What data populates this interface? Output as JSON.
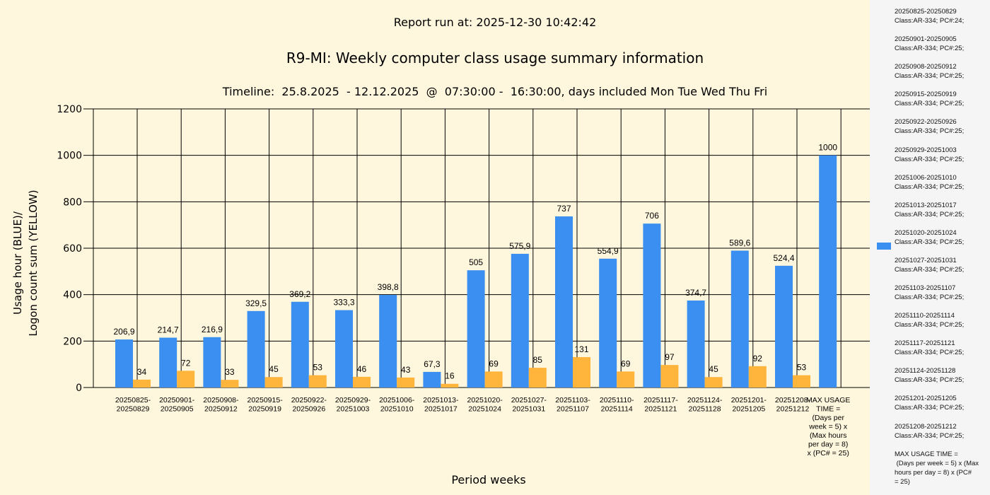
{
  "header": {
    "report_run": "Report run at: 2025-12-30 10:42:42",
    "title": "R9-MI: Weekly computer class usage summary information",
    "timeline": "Timeline:  25.8.2025  - 12.12.2025  @  07:30:00 -  16:30:00, days included Mon Tue Wed Thu Fri"
  },
  "colors": {
    "blue": "#3a8ff0",
    "yellow": "#ffb43c",
    "background": "#fff7dd",
    "legend_bg": "#f5f5f5"
  },
  "chart_data": {
    "type": "bar",
    "xlabel": "Period weeks",
    "ylabel_line1": "Usage hour (BLUE)/",
    "ylabel_line2": "Logon count sum (YELLOW)",
    "ylim": [
      0,
      1200
    ],
    "yticks": [
      0,
      200,
      400,
      600,
      800,
      1000,
      1200
    ],
    "grid": true,
    "categories": [
      [
        "20250825-",
        "20250829"
      ],
      [
        "20250901-",
        "20250905"
      ],
      [
        "20250908-",
        "20250912"
      ],
      [
        "20250915-",
        "20250919"
      ],
      [
        "20250922-",
        "20250926"
      ],
      [
        "20250929-",
        "20251003"
      ],
      [
        "20251006-",
        "20251010"
      ],
      [
        "20251013-",
        "20251017"
      ],
      [
        "20251020-",
        "20251024"
      ],
      [
        "20251027-",
        "20251031"
      ],
      [
        "20251103-",
        "20251107"
      ],
      [
        "20251110-",
        "20251114"
      ],
      [
        "20251117-",
        "20251121"
      ],
      [
        "20251124-",
        "20251128"
      ],
      [
        "20251201-",
        "20251205"
      ],
      [
        "20251208-",
        "20251212"
      ],
      [
        "MAX USAGE",
        "TIME =",
        "(Days per",
        "week = 5) x",
        "(Max hours",
        "per day = 8)",
        "x (PC# = 25)"
      ]
    ],
    "series": [
      {
        "name": "Usage hour (BLUE)",
        "color": "#3a8ff0",
        "values": [
          206.9,
          214.7,
          216.9,
          329.5,
          369.2,
          333.3,
          398.8,
          67.3,
          505,
          575.9,
          737,
          554.9,
          706,
          374.7,
          589.6,
          524.4,
          1000
        ],
        "labels": [
          "206,9",
          "214,7",
          "216,9",
          "329,5",
          "369,2",
          "333,3",
          "398,8",
          "67,3",
          "505",
          "575,9",
          "737",
          "554,9",
          "706",
          "374,7",
          "589,6",
          "524,4",
          "1000"
        ]
      },
      {
        "name": "Logon count sum (YELLOW)",
        "color": "#ffb43c",
        "values": [
          34,
          72,
          33,
          45,
          53,
          46,
          43,
          16,
          69,
          85,
          131,
          69,
          97,
          45,
          92,
          53,
          null
        ],
        "labels": [
          "34",
          "72",
          "33",
          "45",
          "53",
          "46",
          "43",
          "16",
          "69",
          "85",
          "131",
          "69",
          "97",
          "45",
          "92",
          "53",
          ""
        ]
      }
    ]
  },
  "legend": {
    "items": [
      [
        "20250825-20250829",
        "Class:AR-334; PC#:24;"
      ],
      [
        "20250901-20250905",
        "Class:AR-334; PC#:25;"
      ],
      [
        "20250908-20250912",
        "Class:AR-334; PC#:25;"
      ],
      [
        "20250915-20250919",
        "Class:AR-334; PC#:25;"
      ],
      [
        "20250922-20250926",
        "Class:AR-334; PC#:25;"
      ],
      [
        "20250929-20251003",
        "Class:AR-334; PC#:25;"
      ],
      [
        "20251006-20251010",
        "Class:AR-334; PC#:25;"
      ],
      [
        "20251013-20251017",
        "Class:AR-334; PC#:25;"
      ],
      [
        "20251020-20251024",
        "Class:AR-334; PC#:25;"
      ],
      [
        "20251027-20251031",
        "Class:AR-334; PC#:25;"
      ],
      [
        "20251103-20251107",
        "Class:AR-334; PC#:25;"
      ],
      [
        "20251110-20251114",
        "Class:AR-334; PC#:25;"
      ],
      [
        "20251117-20251121",
        "Class:AR-334; PC#:25;"
      ],
      [
        "20251124-20251128",
        "Class:AR-334; PC#:25;"
      ],
      [
        "20251201-20251205",
        "Class:AR-334; PC#:25;"
      ],
      [
        "20251208-20251212",
        "Class:AR-334; PC#:25;"
      ],
      [
        "MAX USAGE TIME =",
        " (Days per week = 5) x (Max",
        "hours per day = 8) x (PC#",
        "= 25)"
      ]
    ]
  }
}
